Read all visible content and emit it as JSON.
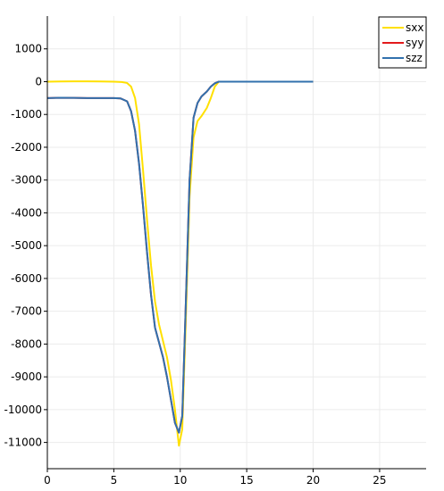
{
  "chart_data": {
    "type": "line",
    "title": "",
    "xlabel": "",
    "ylabel": "",
    "xlim": [
      0,
      28.5
    ],
    "ylim": [
      -11800,
      2000
    ],
    "grid": true,
    "legend_placement": "top-right",
    "x_ticks": [
      0,
      5,
      10,
      15,
      20,
      25
    ],
    "y_ticks": [
      1000,
      0,
      -1000,
      -2000,
      -3000,
      -4000,
      -5000,
      -6000,
      -7000,
      -8000,
      -9000,
      -10000,
      -11000
    ],
    "legend": [
      "sxx",
      "syy",
      "szz"
    ],
    "series": [
      {
        "name": "sxx",
        "color": "#ffe000",
        "points": [
          [
            0,
            0
          ],
          [
            1,
            5
          ],
          [
            2,
            10
          ],
          [
            3,
            8
          ],
          [
            4,
            5
          ],
          [
            5,
            0
          ],
          [
            5.6,
            -10
          ],
          [
            6,
            -40
          ],
          [
            6.3,
            -150
          ],
          [
            6.6,
            -500
          ],
          [
            6.9,
            -1300
          ],
          [
            7.2,
            -2700
          ],
          [
            7.5,
            -4200
          ],
          [
            7.8,
            -5600
          ],
          [
            8.1,
            -6700
          ],
          [
            8.4,
            -7400
          ],
          [
            8.7,
            -7900
          ],
          [
            9.0,
            -8400
          ],
          [
            9.3,
            -9100
          ],
          [
            9.6,
            -10000
          ],
          [
            9.9,
            -11100
          ],
          [
            10.15,
            -10600
          ],
          [
            10.4,
            -7500
          ],
          [
            10.7,
            -3500
          ],
          [
            11.0,
            -1700
          ],
          [
            11.3,
            -1200
          ],
          [
            11.6,
            -1050
          ],
          [
            12.0,
            -800
          ],
          [
            12.3,
            -500
          ],
          [
            12.6,
            -150
          ],
          [
            12.9,
            0
          ],
          [
            13.5,
            0
          ],
          [
            15,
            0
          ],
          [
            17,
            0
          ],
          [
            20,
            0
          ]
        ]
      },
      {
        "name": "syy",
        "color": "#e31a1c",
        "points": [
          [
            0,
            -500
          ],
          [
            1,
            -490
          ],
          [
            2,
            -495
          ],
          [
            3,
            -500
          ],
          [
            4,
            -500
          ],
          [
            5,
            -500
          ],
          [
            5.5,
            -510
          ],
          [
            6,
            -600
          ],
          [
            6.3,
            -900
          ],
          [
            6.6,
            -1500
          ],
          [
            6.9,
            -2500
          ],
          [
            7.2,
            -3800
          ],
          [
            7.5,
            -5200
          ],
          [
            7.8,
            -6500
          ],
          [
            8.1,
            -7500
          ],
          [
            8.4,
            -7950
          ],
          [
            8.7,
            -8400
          ],
          [
            9.0,
            -9000
          ],
          [
            9.3,
            -9700
          ],
          [
            9.6,
            -10400
          ],
          [
            9.9,
            -10700
          ],
          [
            10.15,
            -10200
          ],
          [
            10.4,
            -7000
          ],
          [
            10.7,
            -3000
          ],
          [
            11.0,
            -1100
          ],
          [
            11.3,
            -650
          ],
          [
            11.6,
            -450
          ],
          [
            12.0,
            -300
          ],
          [
            12.3,
            -150
          ],
          [
            12.6,
            -50
          ],
          [
            12.9,
            0
          ],
          [
            13.5,
            0
          ],
          [
            15,
            0
          ],
          [
            17,
            0
          ],
          [
            20,
            0
          ]
        ]
      },
      {
        "name": "szz",
        "color": "#3171ad",
        "points": [
          [
            0,
            -500
          ],
          [
            1,
            -490
          ],
          [
            2,
            -495
          ],
          [
            3,
            -500
          ],
          [
            4,
            -500
          ],
          [
            5,
            -500
          ],
          [
            5.5,
            -510
          ],
          [
            6,
            -600
          ],
          [
            6.3,
            -900
          ],
          [
            6.6,
            -1500
          ],
          [
            6.9,
            -2500
          ],
          [
            7.2,
            -3800
          ],
          [
            7.5,
            -5200
          ],
          [
            7.8,
            -6500
          ],
          [
            8.1,
            -7500
          ],
          [
            8.4,
            -7950
          ],
          [
            8.7,
            -8400
          ],
          [
            9.0,
            -9000
          ],
          [
            9.3,
            -9700
          ],
          [
            9.6,
            -10400
          ],
          [
            9.9,
            -10700
          ],
          [
            10.15,
            -10200
          ],
          [
            10.4,
            -7000
          ],
          [
            10.7,
            -3000
          ],
          [
            11.0,
            -1100
          ],
          [
            11.3,
            -650
          ],
          [
            11.6,
            -450
          ],
          [
            12.0,
            -300
          ],
          [
            12.3,
            -150
          ],
          [
            12.6,
            -50
          ],
          [
            12.9,
            0
          ],
          [
            13.5,
            0
          ],
          [
            15,
            0
          ],
          [
            17,
            0
          ],
          [
            20,
            0
          ]
        ]
      }
    ]
  }
}
